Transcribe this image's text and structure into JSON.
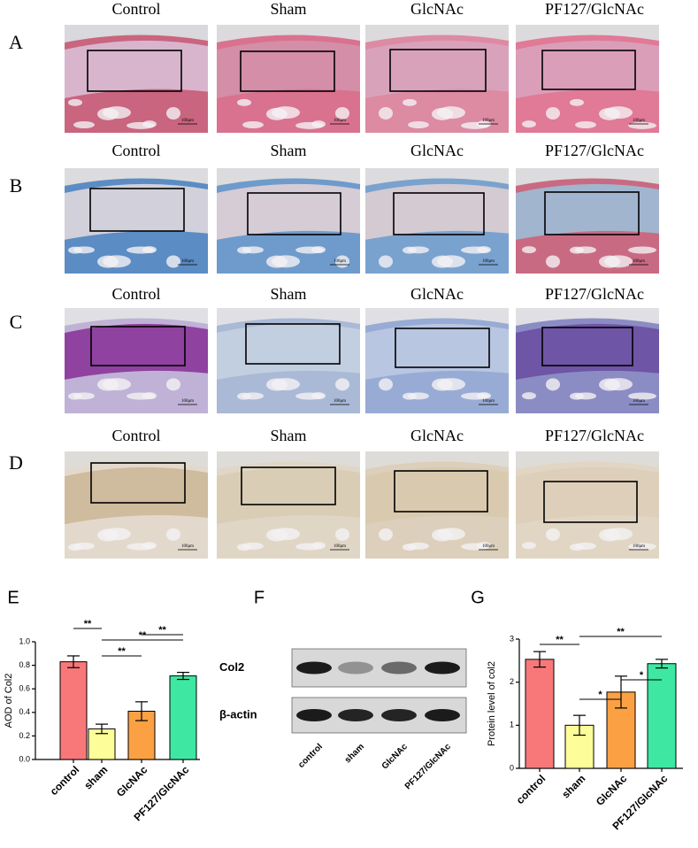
{
  "histology": {
    "scale_label": "100μm",
    "rows": [
      {
        "letter": "A",
        "columns": [
          "Control",
          "Sham",
          "GlcNAc",
          "PF127/GlcNAc"
        ]
      },
      {
        "letter": "B",
        "columns": [
          "Control",
          "Sham",
          "GlcNAc",
          "PF127/GlcNAc"
        ]
      },
      {
        "letter": "C",
        "columns": [
          "Control",
          "Sham",
          "GlcNAc",
          "PF127/GlcNAc"
        ]
      },
      {
        "letter": "D",
        "columns": [
          "Control",
          "Sham",
          "GlcNAc",
          "PF127/GlcNAc"
        ]
      }
    ]
  },
  "blot": {
    "panel": "F",
    "bands": [
      "Col2",
      "β-actin"
    ],
    "lanes": [
      "control",
      "sham",
      "GlcNAc",
      "PF127/GlcNAc"
    ]
  },
  "chart_data": [
    {
      "type": "bar",
      "panel": "E",
      "ylabel": "AOD of Col2",
      "categories": [
        "control",
        "sham",
        "GlcNAc",
        "PF127/GlcNAc"
      ],
      "values": [
        0.83,
        0.26,
        0.41,
        0.71
      ],
      "errors": [
        0.05,
        0.04,
        0.08,
        0.03
      ],
      "colors": [
        "#f8787a",
        "#fdfd9a",
        "#fba143",
        "#3ee8a2"
      ],
      "ylim": [
        0,
        1
      ],
      "yticks": [
        {
          "value": 0,
          "label": "0.0"
        },
        0.2,
        0.4,
        0.6,
        0.8,
        {
          "value": 1,
          "label": "1.0"
        }
      ],
      "significance": [
        "**",
        "**",
        "**",
        "**"
      ]
    },
    {
      "type": "bar",
      "panel": "G",
      "ylabel": "Protein level of col2",
      "categories": [
        "control",
        "sham",
        "GlcNAc",
        "PF127/GlcNAc"
      ],
      "values": [
        2.53,
        1.0,
        1.77,
        2.43
      ],
      "errors": [
        0.18,
        0.23,
        0.37,
        0.1
      ],
      "colors": [
        "#f8787a",
        "#fdfd9a",
        "#fba143",
        "#3ee8a2"
      ],
      "ylim": [
        0,
        3
      ],
      "yticks": [
        0,
        1,
        2,
        3
      ],
      "significance": [
        "**",
        "**",
        "*",
        "*"
      ]
    }
  ]
}
